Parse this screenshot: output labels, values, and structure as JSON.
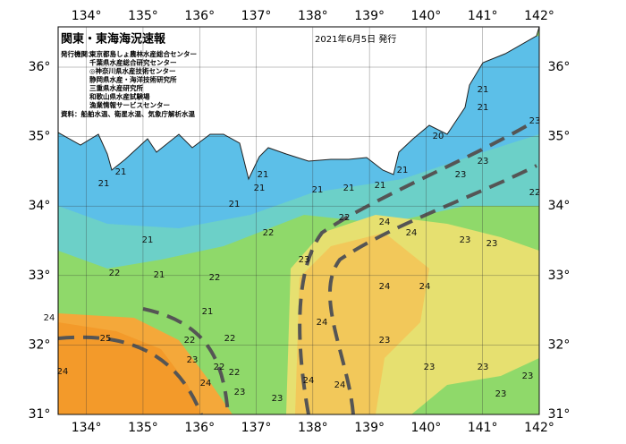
{
  "map": {
    "title": "関東・東海海況速報",
    "date": "2021年6月5日 発行",
    "issuer_label": "発行機関：",
    "issuers": [
      "東京都島しょ農林水産総合センター",
      "千葉県水産総合研究センター",
      "◎神奈川県水産技術センター",
      "静岡県水産・海洋技術研究所",
      "三重県水産研究所",
      "和歌山県水産試験場",
      "漁業情報サービスセンター"
    ],
    "source": "資料：船舶水温、衛星水温、気象庁解析水温",
    "lon_range": [
      133.5,
      142
    ],
    "lat_range": [
      31,
      36.58
    ],
    "lon_ticks": [
      {
        "value": 134,
        "label": "134°"
      },
      {
        "value": 135,
        "label": "135°"
      },
      {
        "value": 136,
        "label": "136°"
      },
      {
        "value": 137,
        "label": "137°"
      },
      {
        "value": 138,
        "label": "138°"
      },
      {
        "value": 139,
        "label": "139°"
      },
      {
        "value": 140,
        "label": "140°"
      },
      {
        "value": 141,
        "label": "141°"
      },
      {
        "value": 142,
        "label": "142°"
      }
    ],
    "lat_ticks": [
      {
        "value": 31,
        "label": "31°"
      },
      {
        "value": 32,
        "label": "32°"
      },
      {
        "value": 33,
        "label": "33°"
      },
      {
        "value": 34,
        "label": "34°"
      },
      {
        "value": 35,
        "label": "35°"
      },
      {
        "value": 36,
        "label": "36°"
      }
    ],
    "temperature_labels": [
      21,
      21,
      21,
      22,
      21,
      22,
      21,
      22,
      22,
      25,
      24,
      24,
      23,
      22,
      22,
      24,
      23,
      23,
      21,
      21,
      21,
      21,
      21,
      21,
      21,
      23,
      23,
      23,
      21,
      21,
      20,
      22,
      24,
      24,
      23,
      23,
      24,
      24,
      23,
      24,
      23,
      24,
      24,
      23,
      23,
      23,
      23,
      22,
      22
    ]
  }
}
